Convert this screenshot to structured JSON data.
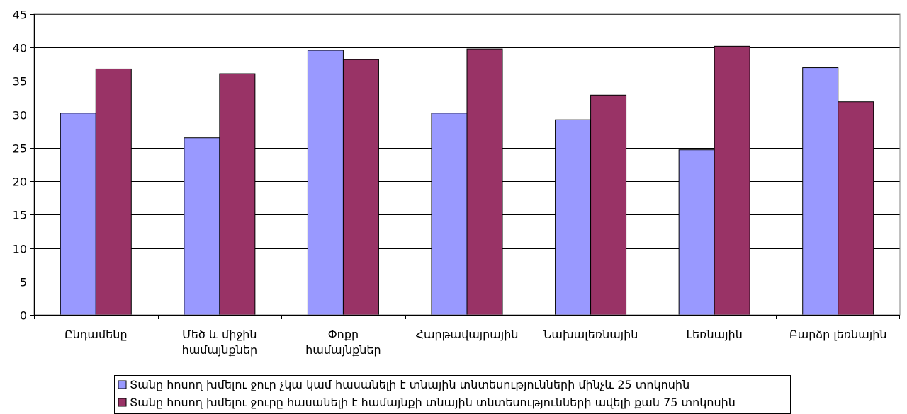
{
  "chart_data": {
    "type": "bar",
    "title": "",
    "xlabel": "",
    "ylabel": "",
    "ylim": [
      0,
      45
    ],
    "yticks": [
      0,
      5,
      10,
      15,
      20,
      25,
      30,
      35,
      40,
      45
    ],
    "grid": true,
    "legend_position": "bottom",
    "categories": [
      [
        "Ընդամենը"
      ],
      [
        "Մեծ և միջին",
        "համայնքներ"
      ],
      [
        "Փոքր",
        "համայնքներ"
      ],
      [
        "Հարթավայրային"
      ],
      [
        "Նախալեռնային"
      ],
      [
        "Լեռնային"
      ],
      [
        "Բարձր լեռնային"
      ]
    ],
    "series": [
      {
        "name": "Տանը հոսող խմելու ջուր չկա կամ հասանելի է տնային տնտեսությունների մինչև 25 տոկոսին",
        "color": "#9999FF",
        "values": [
          30.2,
          26.5,
          39.6,
          30.2,
          29.2,
          24.7,
          37.0
        ]
      },
      {
        "name": "Տանը հոսող խմելու ջուրը հասանելի է համայնքի տնային տնտեսությունների ավելի քան 75 տոկոսին",
        "color": "#993366",
        "values": [
          36.8,
          36.1,
          38.2,
          39.8,
          32.9,
          40.2,
          31.9
        ]
      }
    ]
  }
}
